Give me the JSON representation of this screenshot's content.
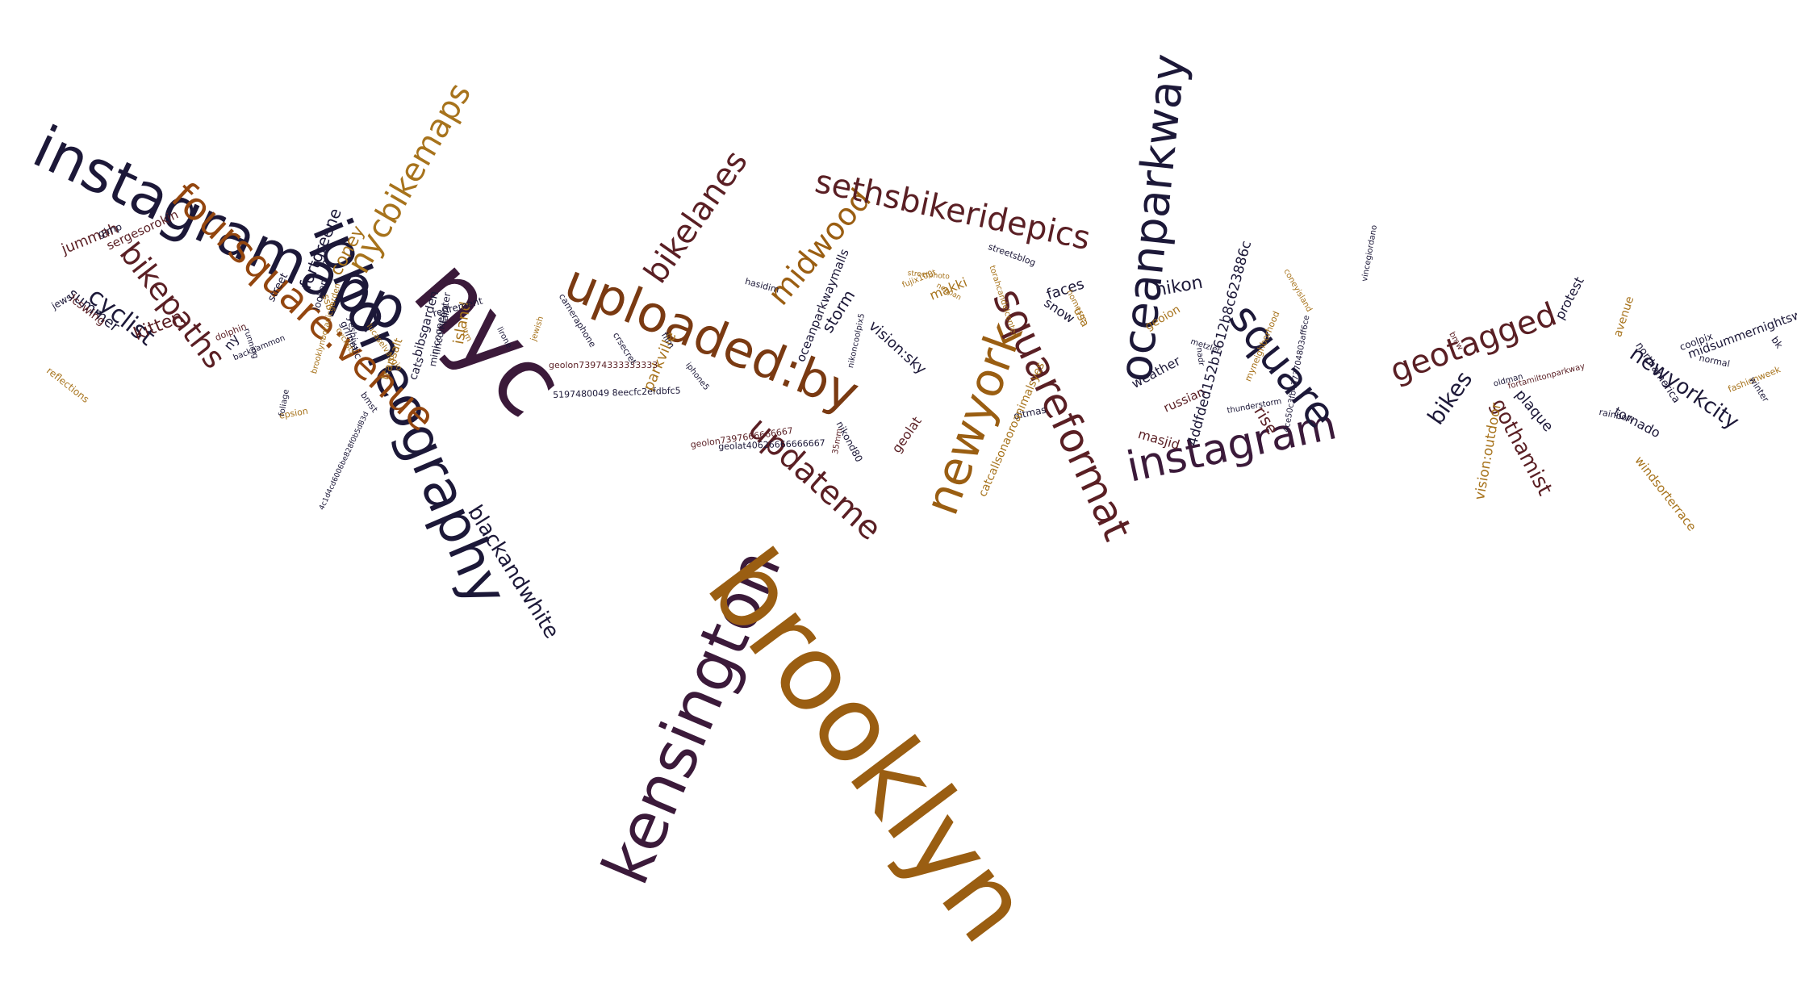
{
  "colors": {
    "dark_navy": "#1c1838",
    "dark_plum": "#3b1a3a",
    "maroon": "#5a1f24",
    "brown": "#7a3a12",
    "rust": "#93460f",
    "amber": "#9a5e12",
    "gold": "#a7731c",
    "light_gold": "#b8893a"
  },
  "words": [
    {
      "text": "instagramapp",
      "color": "dark_navy"
    },
    {
      "text": "iphoneography",
      "color": "dark_navy"
    },
    {
      "text": "foursquare:venue",
      "color": "rust"
    },
    {
      "text": "nyc",
      "color": "dark_plum"
    },
    {
      "text": "nycbikemaps",
      "color": "gold"
    },
    {
      "text": "bikepaths",
      "color": "maroon"
    },
    {
      "text": "cyclist",
      "color": "dark_navy"
    },
    {
      "text": "kitten",
      "color": "maroon"
    },
    {
      "text": "jummah",
      "color": "maroon"
    },
    {
      "text": "summer",
      "color": "dark_navy"
    },
    {
      "text": "coney",
      "color": "gold"
    },
    {
      "text": "fortgreene",
      "color": "dark_navy"
    },
    {
      "text": "island",
      "color": "gold"
    },
    {
      "text": "blackandwhite",
      "color": "dark_navy"
    },
    {
      "text": "sergesorokin",
      "color": "maroon"
    },
    {
      "text": "lcswing",
      "color": "maroon"
    },
    {
      "text": "reflections",
      "color": "gold"
    },
    {
      "text": "jews",
      "color": "dark_navy"
    },
    {
      "text": "gimp",
      "color": "dark_navy"
    },
    {
      "text": "street",
      "color": "dark_navy"
    },
    {
      "text": "looken",
      "color": "dark_navy"
    },
    {
      "text": "ssb",
      "color": "gold"
    },
    {
      "text": "ny",
      "color": "dark_navy"
    },
    {
      "text": "dolphin",
      "color": "maroon"
    },
    {
      "text": "bibsgarden",
      "color": "dark_navy"
    },
    {
      "text": "lincolncenter",
      "color": "dark_navy"
    },
    {
      "text": "retirement",
      "color": "dark_navy"
    },
    {
      "text": "cats",
      "color": "dark_navy"
    },
    {
      "text": "minicooper",
      "color": "dark_navy"
    },
    {
      "text": "brooklynbotanicgarden",
      "color": "gold"
    },
    {
      "text": "4c1d4cd6006be828f0b5d83d",
      "color": "dark_navy"
    },
    {
      "text": "uploaded:by",
      "color": "brown"
    },
    {
      "text": "bikelanes",
      "color": "maroon"
    },
    {
      "text": "midwood",
      "color": "amber"
    },
    {
      "text": "sethsbikeridepics",
      "color": "maroon"
    },
    {
      "text": "updateme",
      "color": "maroon"
    },
    {
      "text": "newyork",
      "color": "amber"
    },
    {
      "text": "kensington",
      "color": "dark_plum"
    },
    {
      "text": "brooklyn",
      "color": "amber"
    },
    {
      "text": "squareformat",
      "color": "maroon"
    },
    {
      "text": "oceanparkway",
      "color": "dark_navy"
    },
    {
      "text": "instagram",
      "color": "dark_plum"
    },
    {
      "text": "square",
      "color": "dark_navy"
    },
    {
      "text": "geotagged",
      "color": "maroon"
    },
    {
      "text": "bikes",
      "color": "dark_navy"
    },
    {
      "text": "gothamist",
      "color": "maroon"
    },
    {
      "text": "newyorkcity",
      "color": "dark_navy"
    },
    {
      "text": "vision:outdoor",
      "color": "gold"
    },
    {
      "text": "plaque",
      "color": "dark_navy"
    },
    {
      "text": "protest",
      "color": "dark_navy"
    },
    {
      "text": "nikon",
      "color": "dark_navy"
    },
    {
      "text": "faces",
      "color": "dark_navy"
    },
    {
      "text": "snow",
      "color": "dark_navy"
    },
    {
      "text": "usa",
      "color": "gold"
    },
    {
      "text": "weather",
      "color": "dark_navy"
    },
    {
      "text": "russian",
      "color": "maroon"
    },
    {
      "text": "masjid",
      "color": "maroon"
    },
    {
      "text": "rise",
      "color": "maroon"
    },
    {
      "text": "storm",
      "color": "dark_navy"
    },
    {
      "text": "vision:sky",
      "color": "dark_navy"
    },
    {
      "text": "makki",
      "color": "gold"
    },
    {
      "text": "geolat",
      "color": "maroon"
    },
    {
      "text": "parkville",
      "color": "gold"
    },
    {
      "text": "oceanparkwaymalls",
      "color": "dark_navy"
    },
    {
      "text": "4ddfded152b1612b8c623886c",
      "color": "dark_navy"
    },
    {
      "text": "tornado",
      "color": "dark_navy"
    },
    {
      "text": "avenue",
      "color": "gold"
    },
    {
      "text": "northamerica",
      "color": "dark_navy"
    },
    {
      "text": "midsummernightswing",
      "color": "dark_navy"
    },
    {
      "text": "fashionweek",
      "color": "gold"
    },
    {
      "text": "winter",
      "color": "dark_navy"
    },
    {
      "text": "windsorterrace",
      "color": "gold"
    },
    {
      "text": "rainbow",
      "color": "dark_navy"
    },
    {
      "text": "coolpix",
      "color": "dark_navy"
    },
    {
      "text": "bk",
      "color": "dark_navy"
    },
    {
      "text": "normal",
      "color": "dark_navy"
    },
    {
      "text": "5197480049 8eecfc2efdbfc5",
      "color": "dark_navy"
    },
    {
      "text": "geolon73974333333333",
      "color": "maroon"
    },
    {
      "text": "geolon7397666666667",
      "color": "maroon"
    },
    {
      "text": "geolat40626666666667",
      "color": "dark_navy"
    },
    {
      "text": "nikond80",
      "color": "dark_navy"
    },
    {
      "text": "fujix100t",
      "color": "gold"
    },
    {
      "text": "geoion",
      "color": "gold"
    },
    {
      "text": "streetsblog",
      "color": "dark_navy"
    },
    {
      "text": "homesre",
      "color": "gold"
    },
    {
      "text": "myneighborhood",
      "color": "gold"
    },
    {
      "text": "coneyisland",
      "color": "gold"
    },
    {
      "text": "metzler",
      "color": "dark_navy"
    },
    {
      "text": "nadr",
      "color": "dark_navy"
    },
    {
      "text": "thunderstorm",
      "color": "dark_navy"
    },
    {
      "text": "4ce50c3fb4373704803aff6ce",
      "color": "dark_navy"
    },
    {
      "text": "vincegiordano",
      "color": "dark_navy"
    },
    {
      "text": "bmw",
      "color": "maroon"
    },
    {
      "text": "fortamiltonparkway",
      "color": "maroon"
    },
    {
      "text": "oldman",
      "color": "dark_navy"
    },
    {
      "text": "ditmas",
      "color": "dark_navy"
    },
    {
      "text": "catcallsonaoroanimalsyes",
      "color": "gold"
    },
    {
      "text": "hasidim",
      "color": "dark_navy"
    },
    {
      "text": "cameraphone",
      "color": "dark_navy"
    },
    {
      "text": "crsecret",
      "color": "dark_navy"
    },
    {
      "text": "film",
      "color": "dark_navy"
    },
    {
      "text": "iphone5",
      "color": "dark_navy"
    },
    {
      "text": "neopan",
      "color": "gold"
    },
    {
      "text": "35mm",
      "color": "maroon"
    },
    {
      "text": "nikoncoolpix5",
      "color": "dark_navy"
    },
    {
      "text": "streetphoto",
      "color": "gold"
    },
    {
      "text": "torahcandelcenter",
      "color": "gold"
    },
    {
      "text": "grimatic",
      "color": "dark_navy"
    },
    {
      "text": "yeshiva",
      "color": "dark_navy"
    },
    {
      "text": "jewish",
      "color": "gold"
    },
    {
      "text": "lirone",
      "color": "dark_navy"
    },
    {
      "text": "transalt",
      "color": "gold"
    },
    {
      "text": "fall4",
      "color": "dark_navy"
    },
    {
      "text": "running",
      "color": "dark_navy"
    },
    {
      "text": "backgammon",
      "color": "dark_navy"
    },
    {
      "text": "epsion",
      "color": "gold"
    },
    {
      "text": "foliage",
      "color": "dark_navy"
    },
    {
      "text": "cyclists",
      "color": "gold"
    },
    {
      "text": "bmst",
      "color": "dark_navy"
    },
    {
      "text": "ltm",
      "color": "gold"
    },
    {
      "text": "lucaselvaggio",
      "color": "gold"
    }
  ]
}
